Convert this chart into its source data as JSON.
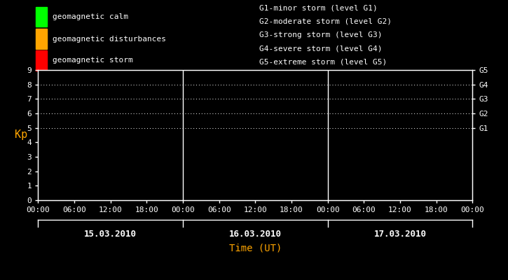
{
  "bg_color": "#000000",
  "fg_color": "#ffffff",
  "orange_color": "#ffa500",
  "title": "Time (UT)",
  "ylabel": "Kp",
  "ylim": [
    0,
    9
  ],
  "yticks": [
    0,
    1,
    2,
    3,
    4,
    5,
    6,
    7,
    8,
    9
  ],
  "days": [
    "15.03.2010",
    "16.03.2010",
    "17.03.2010"
  ],
  "legend_items": [
    {
      "label": "geomagnetic calm",
      "color": "#00ff00"
    },
    {
      "label": "geomagnetic disturbances",
      "color": "#ffa500"
    },
    {
      "label": "geomagnetic storm",
      "color": "#ff0000"
    }
  ],
  "storm_labels": [
    "G1-minor storm (level G1)",
    "G2-moderate storm (level G2)",
    "G3-strong storm (level G3)",
    "G4-severe storm (level G4)",
    "G5-extreme storm (level G5)"
  ],
  "storm_levels": [
    5,
    6,
    7,
    8,
    9
  ],
  "storm_label_keys": [
    "G1",
    "G2",
    "G3",
    "G4",
    "G5"
  ],
  "dotted_levels": [
    5,
    6,
    7,
    8,
    9
  ],
  "font_family": "monospace",
  "font_size": 8,
  "figsize": [
    7.25,
    4.0
  ],
  "dpi": 100
}
